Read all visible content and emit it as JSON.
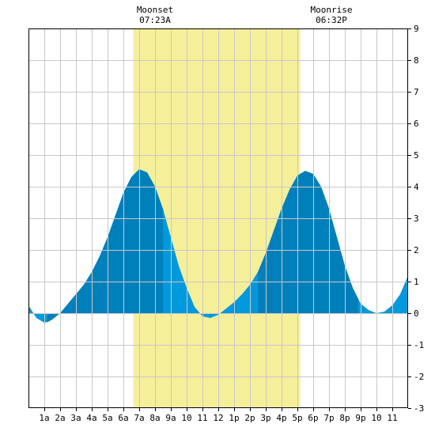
{
  "chart_data": {
    "type": "area",
    "title": "",
    "xlabel": "",
    "ylabel": "",
    "xlim": [
      0,
      24
    ],
    "ylim": [
      -3,
      9
    ],
    "grid": true,
    "x_ticks": [
      {
        "x": 1,
        "label": "1a"
      },
      {
        "x": 2,
        "label": "2a"
      },
      {
        "x": 3,
        "label": "3a"
      },
      {
        "x": 4,
        "label": "4a"
      },
      {
        "x": 5,
        "label": "5a"
      },
      {
        "x": 6,
        "label": "6a"
      },
      {
        "x": 7,
        "label": "7a"
      },
      {
        "x": 8,
        "label": "8a"
      },
      {
        "x": 9,
        "label": "9a"
      },
      {
        "x": 10,
        "label": "10"
      },
      {
        "x": 11,
        "label": "11"
      },
      {
        "x": 12,
        "label": "12"
      },
      {
        "x": 13,
        "label": "1p"
      },
      {
        "x": 14,
        "label": "2p"
      },
      {
        "x": 15,
        "label": "3p"
      },
      {
        "x": 16,
        "label": "4p"
      },
      {
        "x": 17,
        "label": "5p"
      },
      {
        "x": 18,
        "label": "6p"
      },
      {
        "x": 19,
        "label": "7p"
      },
      {
        "x": 20,
        "label": "8p"
      },
      {
        "x": 21,
        "label": "9p"
      },
      {
        "x": 22,
        "label": "10"
      },
      {
        "x": 23,
        "label": "11"
      }
    ],
    "y_ticks": [
      -3,
      -2,
      -1,
      0,
      1,
      2,
      3,
      4,
      5,
      6,
      7,
      8,
      9
    ],
    "moon_band": {
      "start": 6.63,
      "end": 17.18,
      "color": "#f5ef9a"
    },
    "annotations": [
      {
        "title": "Moonset",
        "time": "07:23A",
        "x": 8.0
      },
      {
        "title": "Moonrise",
        "time": "06:32P",
        "x": 19.15
      }
    ],
    "colors": {
      "fill_light": "#0099dd",
      "fill_dark": "#0080bb",
      "grid": "#c8c8c8"
    },
    "dark_segments": [
      [
        1.2,
        8.5
      ],
      [
        14.5,
        20.85
      ]
    ],
    "series": [
      {
        "x": [
          0,
          0.5,
          1,
          1.2,
          1.5,
          2,
          2.5,
          3,
          3.5,
          4,
          4.5,
          5,
          5.5,
          6,
          6.5,
          7,
          7.5,
          8,
          8.5,
          9,
          9.5,
          10,
          10.5,
          11,
          11.5,
          12,
          12.5,
          13,
          13.5,
          14,
          14.5,
          15,
          15.5,
          16,
          16.5,
          17,
          17.5,
          18,
          18.5,
          19,
          19.5,
          20,
          20.5,
          20.85,
          21,
          21.5,
          22,
          22.5,
          23,
          23.5,
          24
        ],
        "values": [
          0.25,
          -0.15,
          -0.3,
          -0.28,
          -0.2,
          0.0,
          0.3,
          0.6,
          0.9,
          1.3,
          1.8,
          2.4,
          3.1,
          3.8,
          4.3,
          4.55,
          4.45,
          4.0,
          3.3,
          2.4,
          1.5,
          0.8,
          0.2,
          -0.1,
          -0.15,
          -0.05,
          0.15,
          0.35,
          0.6,
          0.9,
          1.3,
          1.9,
          2.6,
          3.3,
          3.9,
          4.35,
          4.5,
          4.4,
          4.0,
          3.3,
          2.4,
          1.5,
          0.8,
          0.45,
          0.3,
          0.1,
          0.0,
          0.05,
          0.25,
          0.6,
          1.2
        ]
      }
    ]
  }
}
